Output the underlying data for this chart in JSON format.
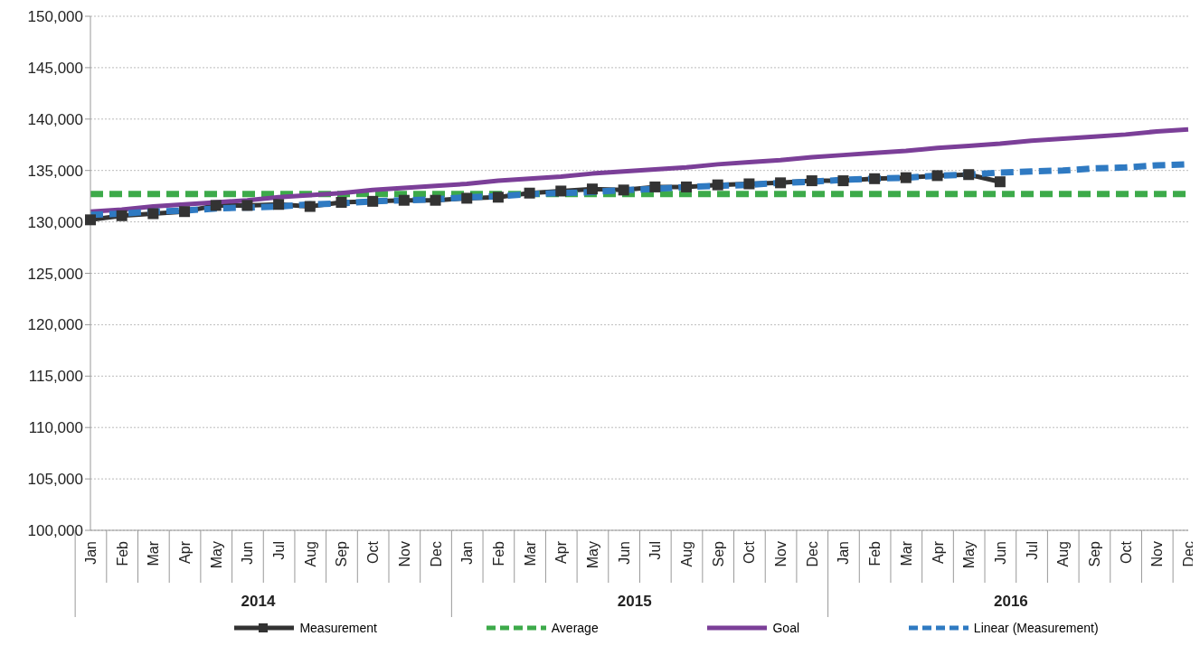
{
  "chart_data": {
    "type": "line",
    "categories": [
      "Jan",
      "Feb",
      "Mar",
      "Apr",
      "May",
      "Jun",
      "Jul",
      "Aug",
      "Sep",
      "Oct",
      "Nov",
      "Dec",
      "Jan",
      "Feb",
      "Mar",
      "Apr",
      "May",
      "Jun",
      "Jul",
      "Aug",
      "Sep",
      "Oct",
      "Nov",
      "Dec",
      "Jan",
      "Feb",
      "Mar",
      "Apr",
      "May",
      "Jun",
      "Jul",
      "Aug",
      "Sep",
      "Oct",
      "Nov",
      "Dec"
    ],
    "annotations": [
      "2014",
      "2015",
      "2016"
    ],
    "series": [
      {
        "name": "Measurement",
        "color": "#333333",
        "marker": "square",
        "line_style": "solid",
        "values": [
          130200,
          130600,
          130800,
          131000,
          131600,
          131600,
          131700,
          131500,
          131900,
          132000,
          132100,
          132100,
          132300,
          132400,
          132800,
          133000,
          133200,
          133100,
          133400,
          133400,
          133600,
          133700,
          133800,
          134000,
          134000,
          134200,
          134300,
          134500,
          134600,
          133900,
          null,
          null,
          null,
          null,
          null,
          null
        ]
      },
      {
        "name": "Average",
        "color": "#3daa4a",
        "marker": "none",
        "line_style": "dashed",
        "values": [
          132700,
          132700,
          132700,
          132700,
          132700,
          132700,
          132700,
          132700,
          132700,
          132700,
          132700,
          132700,
          132700,
          132700,
          132700,
          132700,
          132700,
          132700,
          132700,
          132700,
          132700,
          132700,
          132700,
          132700,
          132700,
          132700,
          132700,
          132700,
          132700,
          132700,
          132700,
          132700,
          132700,
          132700,
          132700,
          132700
        ]
      },
      {
        "name": "Goal",
        "color": "#7b3f98",
        "marker": "none",
        "line_style": "solid",
        "values": [
          131000,
          131200,
          131500,
          131700,
          131900,
          132100,
          132400,
          132600,
          132800,
          133100,
          133300,
          133500,
          133700,
          134000,
          134200,
          134400,
          134700,
          134900,
          135100,
          135300,
          135600,
          135800,
          136000,
          136300,
          136500,
          136700,
          136900,
          137200,
          137400,
          137600,
          137900,
          138100,
          138300,
          138500,
          138800,
          139000
        ]
      },
      {
        "name": "Linear (Measurement)",
        "color": "#2f7ac2",
        "marker": "none",
        "line_style": "dashed",
        "values": [
          130700,
          130800,
          131000,
          131100,
          131300,
          131400,
          131500,
          131700,
          131800,
          132000,
          132100,
          132200,
          132400,
          132500,
          132700,
          132800,
          132900,
          133100,
          133200,
          133400,
          133500,
          133600,
          133800,
          133900,
          134100,
          134200,
          134300,
          134500,
          134600,
          134800,
          134900,
          135000,
          135200,
          135300,
          135500,
          135600
        ]
      }
    ],
    "ylim": [
      100000,
      150000
    ],
    "yticks": [
      {
        "value": 100000,
        "label": "100,000"
      },
      {
        "value": 105000,
        "label": "105,000"
      },
      {
        "value": 110000,
        "label": "110,000"
      },
      {
        "value": 115000,
        "label": "115,000"
      },
      {
        "value": 120000,
        "label": "120,000"
      },
      {
        "value": 125000,
        "label": "125,000"
      },
      {
        "value": 130000,
        "label": "130,000"
      },
      {
        "value": 135000,
        "label": "135,000"
      },
      {
        "value": 140000,
        "label": "140,000"
      },
      {
        "value": 145000,
        "label": "145,000"
      },
      {
        "value": 150000,
        "label": "150,000"
      }
    ],
    "grid": "y",
    "legend": "bottom"
  }
}
